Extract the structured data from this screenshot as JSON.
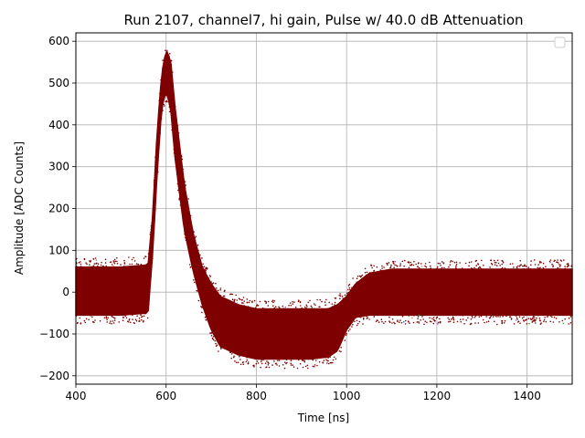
{
  "chart_data": {
    "type": "scatter",
    "title": "Run 2107, channel7, hi gain, Pulse w/ 40.0 dB Attenuation",
    "xlabel": "Time [ns]",
    "ylabel": "Amplitude [ADC Counts]",
    "xlim": [
      400,
      1500
    ],
    "ylim": [
      -220,
      620
    ],
    "xticks": [
      400,
      600,
      800,
      1000,
      1200,
      1400
    ],
    "yticks": [
      -200,
      -100,
      0,
      100,
      200,
      300,
      400,
      500,
      600
    ],
    "grid": true,
    "legend": {
      "placement": "top-right",
      "entries": []
    },
    "colors": {
      "points": "#7f0000",
      "grid": "#b0b0b0",
      "stray": [
        "#1f77b4",
        "#ff7f0e",
        "#2ca02c",
        "#9467bd"
      ]
    },
    "envelope": {
      "x": [
        400,
        500,
        560,
        570,
        580,
        590,
        600,
        610,
        620,
        640,
        660,
        680,
        700,
        720,
        760,
        800,
        860,
        920,
        960,
        980,
        1000,
        1020,
        1050,
        1100,
        1200,
        1300,
        1400,
        1500
      ],
      "upper": [
        60,
        60,
        65,
        180,
        380,
        520,
        580,
        555,
        440,
        260,
        140,
        60,
        20,
        -10,
        -30,
        -40,
        -40,
        -40,
        -40,
        -30,
        -10,
        20,
        45,
        55,
        55,
        55,
        55,
        55
      ],
      "lower": [
        -55,
        -55,
        -50,
        90,
        280,
        440,
        480,
        440,
        320,
        150,
        50,
        -30,
        -90,
        -130,
        -150,
        -160,
        -160,
        -160,
        -155,
        -140,
        -90,
        -60,
        -55,
        -55,
        -55,
        -55,
        -55,
        -55
      ]
    }
  }
}
